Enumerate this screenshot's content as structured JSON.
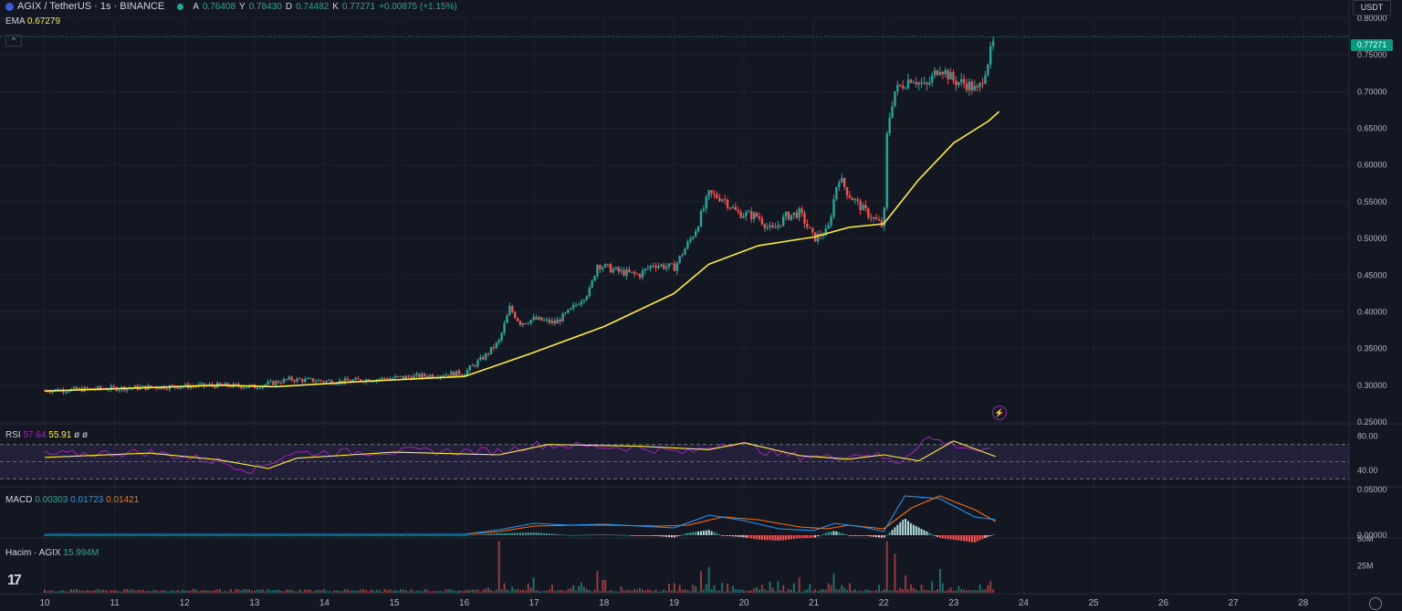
{
  "header": {
    "symbol": "AGIX / TetherUS · 1s · BINANCE",
    "o_label": "A",
    "o_value": "0.76408",
    "h_label": "Y",
    "h_value": "0.78430",
    "l_label": "D",
    "l_value": "0.74482",
    "c_label": "K",
    "c_value": "0.77271",
    "change": "+0.00875 (+1.15%)"
  },
  "ema": {
    "label": "EMA",
    "value": "0.67279"
  },
  "currency_button": "USDT",
  "last_price_tag": "0.77271",
  "rsi": {
    "label": "RSI",
    "value1": "57.64",
    "value2": "55.91",
    "extra": "ø ø"
  },
  "macd": {
    "label": "MACD",
    "value1": "0.00303",
    "value2": "0.01723",
    "value3": "0.01421"
  },
  "volume": {
    "label": "Hacim · AGIX",
    "value": "15.994M"
  },
  "logo_text": "17",
  "colors": {
    "background": "#131722",
    "up": "#26a69a",
    "down": "#ef5350",
    "ema": "#ffeb3b",
    "rsi_line": "#9c27b0",
    "rsi_ma": "#ffeb3b",
    "macd_line": "#2196f3",
    "signal_line": "#ff6d00"
  },
  "chart_data": {
    "type": "candlestick",
    "x_labels": [
      "10",
      "11",
      "12",
      "13",
      "14",
      "15",
      "16",
      "17",
      "18",
      "19",
      "20",
      "21",
      "22",
      "23",
      "24",
      "25",
      "26",
      "27",
      "28"
    ],
    "price_axis": {
      "ticks": [
        "0.80000",
        "0.75000",
        "0.70000",
        "0.65000",
        "0.60000",
        "0.55000",
        "0.50000",
        "0.45000",
        "0.40000",
        "0.35000",
        "0.30000",
        "0.25000"
      ],
      "range": [
        0.25,
        0.8
      ]
    },
    "rsi_axis": {
      "ticks": [
        "80.00",
        "40.00"
      ],
      "range": [
        25,
        92
      ]
    },
    "macd_axis": {
      "ticks": [
        "0.05000",
        "0.00000"
      ],
      "range": [
        -0.002,
        0.05
      ]
    },
    "volume_axis": {
      "ticks": [
        "50M",
        "25M"
      ],
      "range": [
        0,
        50
      ]
    },
    "close_path": [
      [
        0,
        0.293
      ],
      [
        2.5,
        0.3
      ],
      [
        3.0,
        0.298
      ],
      [
        3.5,
        0.308
      ],
      [
        4.2,
        0.305
      ],
      [
        5.0,
        0.31
      ],
      [
        6.0,
        0.317
      ],
      [
        6.3,
        0.34
      ],
      [
        6.5,
        0.36
      ],
      [
        6.65,
        0.405
      ],
      [
        6.8,
        0.385
      ],
      [
        7.0,
        0.39
      ],
      [
        7.3,
        0.385
      ],
      [
        7.5,
        0.4
      ],
      [
        7.8,
        0.43
      ],
      [
        7.9,
        0.465
      ],
      [
        8.2,
        0.455
      ],
      [
        8.5,
        0.45
      ],
      [
        8.7,
        0.465
      ],
      [
        9.0,
        0.46
      ],
      [
        9.3,
        0.51
      ],
      [
        9.5,
        0.56
      ],
      [
        9.7,
        0.555
      ],
      [
        9.9,
        0.535
      ],
      [
        10.2,
        0.53
      ],
      [
        10.4,
        0.51
      ],
      [
        10.6,
        0.53
      ],
      [
        10.8,
        0.535
      ],
      [
        11.0,
        0.5
      ],
      [
        11.2,
        0.51
      ],
      [
        11.35,
        0.585
      ],
      [
        11.5,
        0.56
      ],
      [
        11.7,
        0.54
      ],
      [
        12.0,
        0.515
      ],
      [
        12.05,
        0.65
      ],
      [
        12.15,
        0.7
      ],
      [
        12.4,
        0.72
      ],
      [
        12.6,
        0.705
      ],
      [
        12.8,
        0.735
      ],
      [
        13.0,
        0.715
      ],
      [
        13.2,
        0.71
      ],
      [
        13.35,
        0.7
      ],
      [
        13.4,
        0.715
      ],
      [
        13.6,
        0.775
      ]
    ],
    "ema_path": [
      [
        0,
        0.292
      ],
      [
        2.5,
        0.3
      ],
      [
        3.3,
        0.298
      ],
      [
        4.5,
        0.305
      ],
      [
        6.0,
        0.312
      ],
      [
        6.4,
        0.325
      ],
      [
        7.0,
        0.345
      ],
      [
        8.0,
        0.38
      ],
      [
        9.0,
        0.425
      ],
      [
        9.5,
        0.465
      ],
      [
        10.2,
        0.49
      ],
      [
        11.0,
        0.502
      ],
      [
        11.5,
        0.515
      ],
      [
        12.0,
        0.52
      ],
      [
        12.5,
        0.58
      ],
      [
        13.0,
        0.63
      ],
      [
        13.5,
        0.66
      ],
      [
        13.65,
        0.673
      ]
    ],
    "rsi_path": [
      [
        0,
        58
      ],
      [
        1.5,
        61
      ],
      [
        2.5,
        50
      ],
      [
        3.0,
        40
      ],
      [
        3.5,
        60
      ],
      [
        5.0,
        62
      ],
      [
        6.5,
        62
      ],
      [
        7.0,
        70
      ],
      [
        8.5,
        66
      ],
      [
        9.2,
        60
      ],
      [
        9.8,
        74
      ],
      [
        10.5,
        58
      ],
      [
        11.2,
        55
      ],
      [
        11.8,
        60
      ],
      [
        12.2,
        48
      ],
      [
        12.6,
        78
      ],
      [
        13.0,
        70
      ],
      [
        13.6,
        59
      ]
    ],
    "rsi_ma_path": [
      [
        0,
        55
      ],
      [
        1.5,
        60
      ],
      [
        2.5,
        52
      ],
      [
        3.2,
        42
      ],
      [
        3.6,
        54
      ],
      [
        5.0,
        61
      ],
      [
        6.5,
        58
      ],
      [
        7.2,
        70
      ],
      [
        8.5,
        68
      ],
      [
        9.5,
        64
      ],
      [
        10.0,
        72
      ],
      [
        10.8,
        57
      ],
      [
        11.5,
        53
      ],
      [
        12.0,
        58
      ],
      [
        12.5,
        51
      ],
      [
        13.0,
        74
      ],
      [
        13.6,
        56
      ]
    ],
    "macd_path": [
      [
        0,
        0.001
      ],
      [
        6.0,
        0.001
      ],
      [
        6.5,
        0.006
      ],
      [
        7.0,
        0.013
      ],
      [
        7.5,
        0.011
      ],
      [
        8.0,
        0.012
      ],
      [
        8.5,
        0.01
      ],
      [
        9.0,
        0.008
      ],
      [
        9.5,
        0.022
      ],
      [
        10.0,
        0.016
      ],
      [
        10.5,
        0.007
      ],
      [
        11.0,
        0.005
      ],
      [
        11.3,
        0.013
      ],
      [
        11.7,
        0.009
      ],
      [
        12.0,
        0.004
      ],
      [
        12.3,
        0.043
      ],
      [
        12.8,
        0.04
      ],
      [
        13.3,
        0.02
      ],
      [
        13.6,
        0.017
      ]
    ],
    "signal_path": [
      [
        0,
        0.001
      ],
      [
        6.0,
        0.001
      ],
      [
        6.5,
        0.004
      ],
      [
        7.0,
        0.01
      ],
      [
        7.6,
        0.011
      ],
      [
        8.0,
        0.011
      ],
      [
        8.8,
        0.01
      ],
      [
        9.2,
        0.011
      ],
      [
        9.7,
        0.02
      ],
      [
        10.2,
        0.017
      ],
      [
        10.8,
        0.009
      ],
      [
        11.2,
        0.007
      ],
      [
        11.5,
        0.011
      ],
      [
        12.0,
        0.007
      ],
      [
        12.4,
        0.03
      ],
      [
        12.8,
        0.043
      ],
      [
        13.3,
        0.028
      ],
      [
        13.6,
        0.015
      ]
    ],
    "volume_spikes": [
      [
        6.5,
        48
      ],
      [
        6.7,
        22
      ],
      [
        7.0,
        14
      ],
      [
        7.7,
        18
      ],
      [
        7.9,
        20
      ],
      [
        8.0,
        12
      ],
      [
        9.4,
        20
      ],
      [
        9.5,
        24
      ],
      [
        10.8,
        14
      ],
      [
        11.3,
        18
      ],
      [
        11.4,
        12
      ],
      [
        12.05,
        48
      ],
      [
        12.15,
        36
      ],
      [
        12.3,
        16
      ],
      [
        12.8,
        22
      ],
      [
        13.6,
        16
      ]
    ]
  }
}
